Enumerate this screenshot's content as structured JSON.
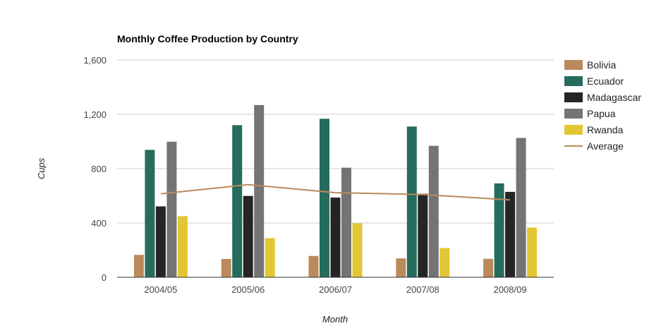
{
  "chart_data": {
    "type": "bar",
    "title": "Monthly Coffee Production by Country",
    "xlabel": "Month",
    "ylabel": "Cups",
    "ylim": [
      0,
      1600
    ],
    "yticks": [
      0,
      400,
      800,
      1200,
      1600
    ],
    "ytick_labels": [
      "0",
      "400",
      "800",
      "1,200",
      "1,600"
    ],
    "categories": [
      "2004/05",
      "2005/06",
      "2006/07",
      "2007/08",
      "2008/09"
    ],
    "grid": true,
    "legend_position": "right",
    "series": [
      {
        "name": "Bolivia",
        "type": "bar",
        "color": "#bb8a5c",
        "values": [
          165,
          135,
          157,
          139,
          136
        ]
      },
      {
        "name": "Ecuador",
        "type": "bar",
        "color": "#266c5d",
        "values": [
          938,
          1120,
          1167,
          1110,
          691
        ]
      },
      {
        "name": "Madagascar",
        "type": "bar",
        "color": "#252525",
        "values": [
          522,
          599,
          587,
          615,
          629
        ]
      },
      {
        "name": "Papua",
        "type": "bar",
        "color": "#747474",
        "values": [
          998,
          1268,
          807,
          968,
          1026
        ]
      },
      {
        "name": "Rwanda",
        "type": "bar",
        "color": "#e2c633",
        "values": [
          450,
          288,
          397,
          215,
          366
        ]
      },
      {
        "name": "Average",
        "type": "line",
        "color": "#bb8a5c",
        "values": [
          614.6,
          682,
          623,
          609.4,
          569.6
        ]
      }
    ]
  }
}
